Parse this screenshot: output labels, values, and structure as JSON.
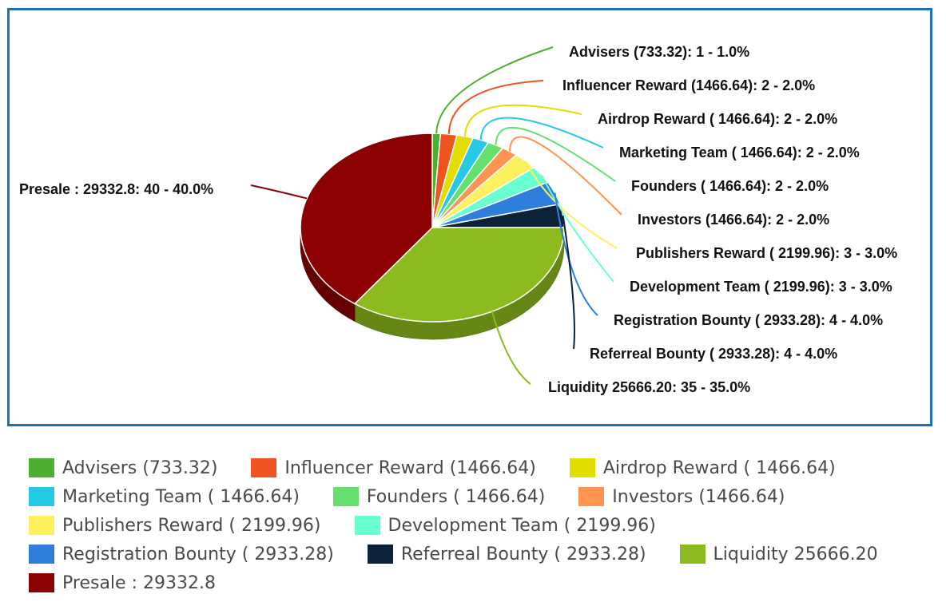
{
  "chart_data": {
    "type": "pie",
    "title": "",
    "slices": [
      {
        "name": "Advisers (733.32)",
        "value": 1,
        "percent": "1.0%",
        "label": "Advisers (733.32): 1 - 1.0%",
        "color": "#4caf2f"
      },
      {
        "name": "Influencer Reward (1466.64)",
        "value": 2,
        "percent": "2.0%",
        "label": "Influencer Reward (1466.64): 2 - 2.0%",
        "color": "#ef5320"
      },
      {
        "name": "Airdrop Reward ( 1466.64)",
        "value": 2,
        "percent": "2.0%",
        "label": "Airdrop Reward ( 1466.64): 2 - 2.0%",
        "color": "#e2de00"
      },
      {
        "name": "Marketing Team ( 1466.64)",
        "value": 2,
        "percent": "2.0%",
        "label": "Marketing Team ( 1466.64): 2 - 2.0%",
        "color": "#25c9e6"
      },
      {
        "name": "Founders ( 1466.64)",
        "value": 2,
        "percent": "2.0%",
        "label": "Founders ( 1466.64): 2 - 2.0%",
        "color": "#66e06d"
      },
      {
        "name": "Investors (1466.64)",
        "value": 2,
        "percent": "2.0%",
        "label": "Investors (1466.64): 2 - 2.0%",
        "color": "#ff9450"
      },
      {
        "name": "Publishers Reward ( 2199.96)",
        "value": 3,
        "percent": "3.0%",
        "label": "Publishers Reward ( 2199.96): 3 - 3.0%",
        "color": "#fff05e"
      },
      {
        "name": "Development Team ( 2199.96)",
        "value": 3,
        "percent": "3.0%",
        "label": "Development Team ( 2199.96): 3 - 3.0%",
        "color": "#6affd0"
      },
      {
        "name": "Registration Bounty ( 2933.28)",
        "value": 4,
        "percent": "4.0%",
        "label": "Registration Bounty ( 2933.28): 4 - 4.0%",
        "color": "#2f7edb"
      },
      {
        "name": "Referreal Bounty ( 2933.28)",
        "value": 4,
        "percent": "4.0%",
        "label": "Referreal Bounty ( 2933.28): 4 - 4.0%",
        "color": "#0d2239"
      },
      {
        "name": "Liquidity 25666.20",
        "value": 35,
        "percent": "35.0%",
        "label": "Liquidity 25666.20: 35 - 35.0%",
        "color": "#8bbb1f"
      },
      {
        "name": "Presale : 29332.8",
        "value": 40,
        "percent": "40.0%",
        "label": "Presale : 29332.8: 40 - 40.0%",
        "color": "#8b0000"
      }
    ],
    "legend_position": "bottom"
  }
}
